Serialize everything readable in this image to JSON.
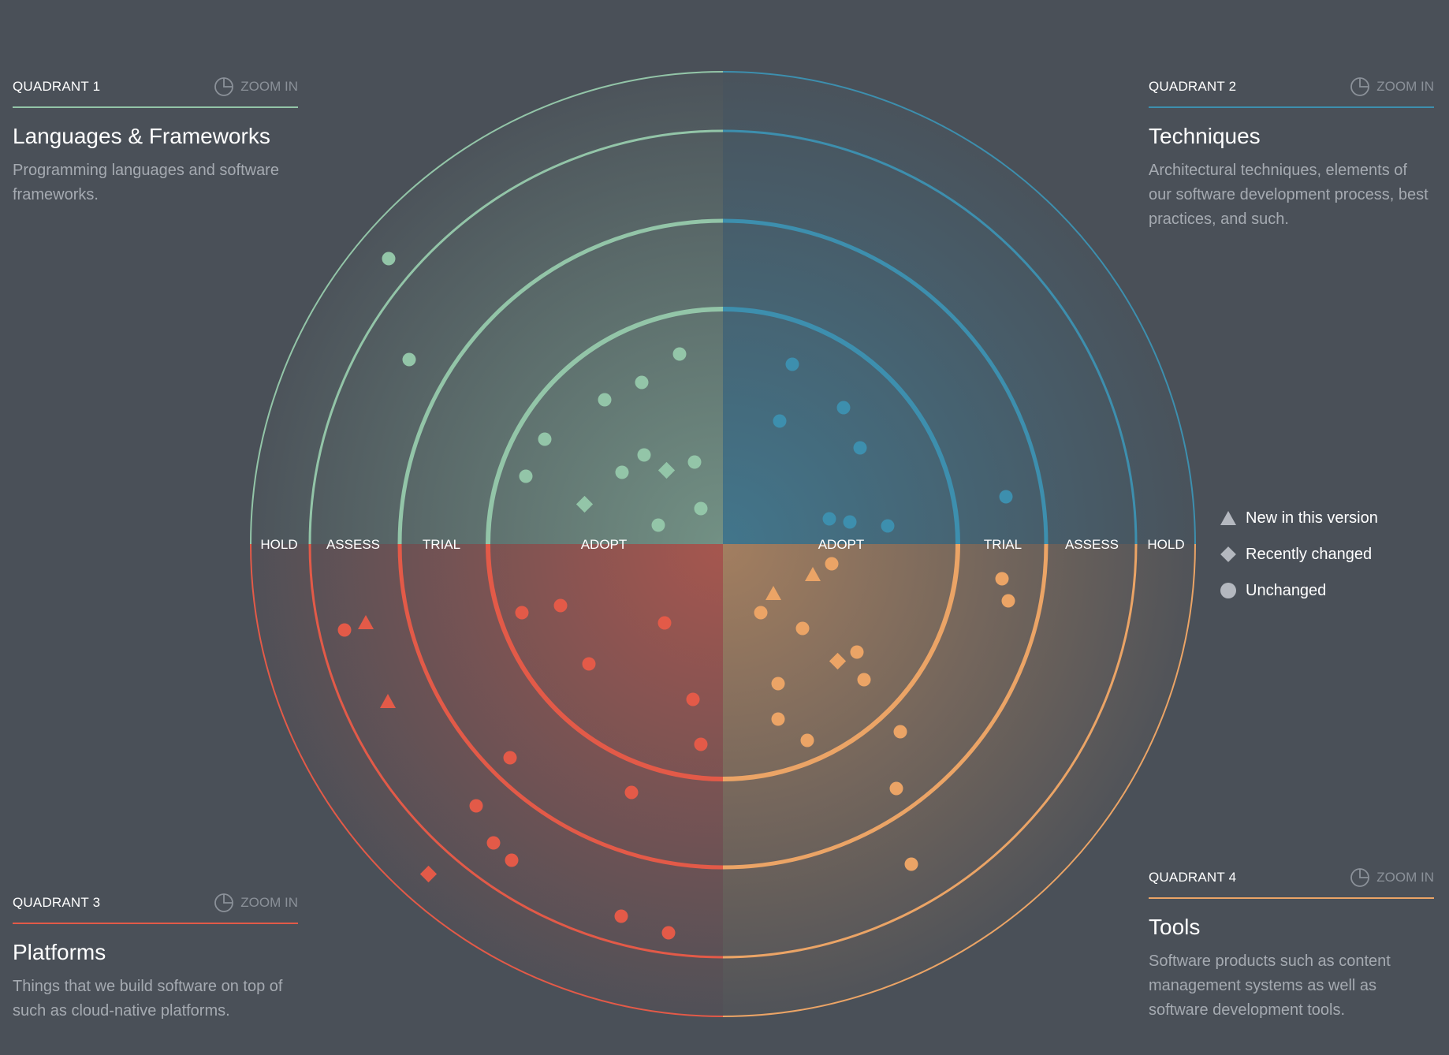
{
  "quadrants": [
    {
      "id": "q1",
      "label": "QUADRANT 1",
      "zoom_label": "ZOOM IN",
      "title": "Languages & Frameworks",
      "description": "Programming languages and software frameworks.",
      "color": "#93c5a8"
    },
    {
      "id": "q2",
      "label": "QUADRANT 2",
      "zoom_label": "ZOOM IN",
      "title": "Techniques",
      "description": "Architectural techniques, elements of our software development process, best practices, and such.",
      "color": "#3d8fae"
    },
    {
      "id": "q3",
      "label": "QUADRANT 3",
      "zoom_label": "ZOOM IN",
      "title": "Platforms",
      "description": "Things that we build software on top of such as cloud-native platforms.",
      "color": "#e35a48"
    },
    {
      "id": "q4",
      "label": "QUADRANT 4",
      "zoom_label": "ZOOM IN",
      "title": "Tools",
      "description": "Software products such as content management systems as well as software development tools.",
      "color": "#eba466"
    }
  ],
  "rings": [
    "ADOPT",
    "TRIAL",
    "ASSESS",
    "HOLD"
  ],
  "legend": [
    {
      "shape": "triangle",
      "label": "New in this version"
    },
    {
      "shape": "diamond",
      "label": "Recently changed"
    },
    {
      "shape": "circle",
      "label": "Unchanged"
    }
  ],
  "colors": {
    "background": "#4a5058",
    "muted": "#8b9199",
    "legend_icon": "#b4b8bf"
  }
}
